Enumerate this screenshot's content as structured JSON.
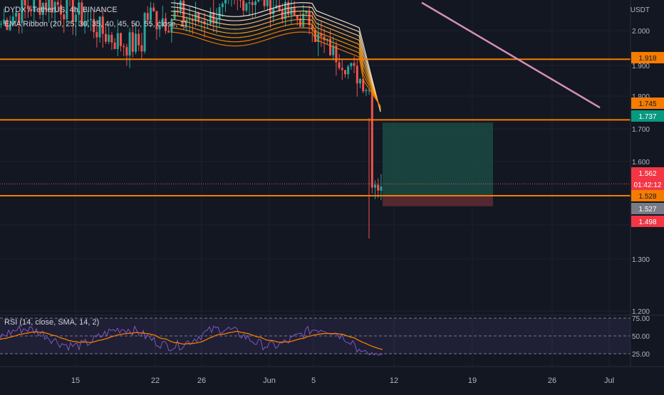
{
  "header": {
    "symbol_line": "DYDX / TetherUS, 4h, BINANCE",
    "indicator_line": "EMA Ribbon (20, 25, 30, 35, 40, 45, 50, 55, close, 1)",
    "rsi_label": "RSI (14, close, SMA, 14, 2)"
  },
  "axis": {
    "currency": "USDT",
    "price_ticks": [
      "2.000",
      "1.900",
      "1.800",
      "1.700",
      "1.600",
      "1.300",
      "1.200"
    ],
    "rsi_ticks": [
      "75.00",
      "50.00",
      "25.00"
    ],
    "date_ticks": [
      "15",
      "22",
      "26",
      "Jun",
      "5",
      "12",
      "19",
      "26",
      "Jul"
    ]
  },
  "badges": [
    {
      "text": "1.918",
      "color": "#f57c00",
      "text_color": "#131722"
    },
    {
      "text": "1.745",
      "color": "#f57c00",
      "text_color": "#131722"
    },
    {
      "text": "1.737",
      "color": "#089981",
      "text_color": "#ffffff"
    },
    {
      "text": "1.562",
      "color": "#f23645",
      "text_color": "#ffffff"
    },
    {
      "text": "01:42:12",
      "color": "#f23645",
      "text_color": "#ffffff"
    },
    {
      "text": "1.528",
      "color": "#f57c00",
      "text_color": "#131722"
    },
    {
      "text": "1.527",
      "color": "#787b86",
      "text_color": "#ffffff"
    },
    {
      "text": "1.498",
      "color": "#f23645",
      "text_color": "#ffffff"
    }
  ],
  "colors": {
    "background": "#131722",
    "up": "#26a69a",
    "down": "#ef5350",
    "level": "#f57c00",
    "trendline": "#d58fba",
    "rsi_line": "#7e57c2",
    "rsi_ma": "#f57c00",
    "target_zone": "#1b4a43",
    "stop_zone": "#5b2a33"
  },
  "chart_data": {
    "type": "candlestick",
    "symbol": "DYDX / TetherUS",
    "timeframe": "4h",
    "exchange": "BINANCE",
    "horizontal_levels": [
      1.918,
      1.745,
      1.528
    ],
    "last_price": 1.562,
    "countdown": "01:42:12",
    "position": {
      "entry": 1.527,
      "target": 1.737,
      "stop": 1.498
    },
    "trendline": {
      "from": {
        "date": "Jun 8",
        "price": 2.08
      },
      "to": {
        "date": "Jun 29",
        "price": 1.78
      }
    },
    "price_axis": {
      "min": 1.2,
      "max": 2.0
    },
    "rsi": {
      "period": 14,
      "levels": [
        75,
        50,
        25
      ],
      "last": 28
    }
  }
}
